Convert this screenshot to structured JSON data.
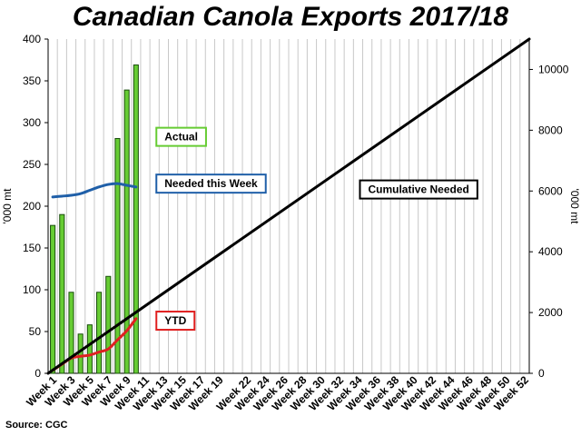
{
  "chart_data": {
    "type": "bar",
    "title": "Canadian Canola Exports 2017/18",
    "source": "Source: CGC",
    "ylabel_left": "'000 mt",
    "ylabel_right": "'000 mt",
    "ylim_left": [
      0,
      400
    ],
    "ylim_right": [
      0,
      11000
    ],
    "yticks_left": [
      0,
      50,
      100,
      150,
      200,
      250,
      300,
      350,
      400
    ],
    "yticks_right": [
      0,
      2000,
      4000,
      6000,
      8000,
      10000
    ],
    "grid": "vertical",
    "weeks": [
      "Week 1",
      "Week 2",
      "Week 3",
      "Week 4",
      "Week 5",
      "Week 6",
      "Week 7",
      "Week 8",
      "Week 9",
      "Week 10",
      "Week 11",
      "Week 12",
      "Week 13",
      "Week 14",
      "Week 15",
      "Week 16",
      "Week 17",
      "Week 18",
      "Week 19",
      "Week 20",
      "Week 21",
      "Week 22",
      "Week 23",
      "Week 24",
      "Week 25",
      "Week 26",
      "Week 27",
      "Week 28",
      "Week 29",
      "Week 30",
      "Week 31",
      "Week 32",
      "Week 33",
      "Week 34",
      "Week 35",
      "Week 36",
      "Week 37",
      "Week 38",
      "Week 39",
      "Week 40",
      "Week 41",
      "Week 42",
      "Week 43",
      "Week 44",
      "Week 45",
      "Week 46",
      "Week 47",
      "Week 48",
      "Week 49",
      "Week 50",
      "Week 51",
      "Week 52"
    ],
    "tick_labels": [
      "Week 1",
      "Week 3",
      "Week 5",
      "Week 7",
      "Week 9",
      "Week 11",
      "Week 13",
      "Week 15",
      "Week 17",
      "Week 19",
      "Week 22",
      "Week 24",
      "Week 26",
      "Week 28",
      "Week 30",
      "Week 32",
      "Week 34",
      "Week 36",
      "Week 38",
      "Week 40",
      "Week 42",
      "Week 44",
      "Week 46",
      "Week 48",
      "Week 50",
      "Week 52"
    ],
    "tick_positions": [
      1,
      3,
      5,
      7,
      9,
      11,
      13,
      15,
      17,
      19,
      22,
      24,
      26,
      28,
      30,
      32,
      34,
      36,
      38,
      40,
      42,
      44,
      46,
      48,
      50,
      52
    ],
    "series": [
      {
        "name": "Actual",
        "type": "bar",
        "axis": "left",
        "color": "#66cc33",
        "values": [
          177,
          190,
          97,
          47,
          58,
          97,
          116,
          281,
          339,
          369
        ]
      },
      {
        "name": "Needed this Week",
        "type": "line",
        "axis": "left",
        "color": "#1f5fa8",
        "x": [
          1,
          2,
          3,
          4,
          5,
          6,
          7,
          8,
          9,
          10
        ],
        "values": [
          211,
          212,
          213,
          215,
          219,
          223,
          226,
          227,
          225,
          223
        ]
      },
      {
        "name": "YTD",
        "type": "line",
        "axis": "right",
        "color": "#e02020",
        "x": [
          1,
          2,
          3,
          4,
          5,
          6,
          7,
          8,
          9,
          10
        ],
        "values": [
          100,
          300,
          500,
          560,
          600,
          700,
          800,
          1100,
          1400,
          1800
        ]
      },
      {
        "name": "Cumulative Needed",
        "type": "line",
        "axis": "right",
        "color": "#000000",
        "x": [
          1,
          52
        ],
        "values": [
          0,
          11000
        ]
      }
    ],
    "legend_boxes": [
      {
        "label": "Actual",
        "border": "#66cc33",
        "week": 12.2,
        "value": 283
      },
      {
        "label": "Needed this Week",
        "border": "#1f5fa8",
        "week": 12.2,
        "value": 227
      },
      {
        "label": "YTD",
        "border": "#e02020",
        "week": 12.2,
        "value": 63
      },
      {
        "label": "Cumulative Needed",
        "border": "#000000",
        "week": 34.2,
        "value": 220
      }
    ]
  }
}
